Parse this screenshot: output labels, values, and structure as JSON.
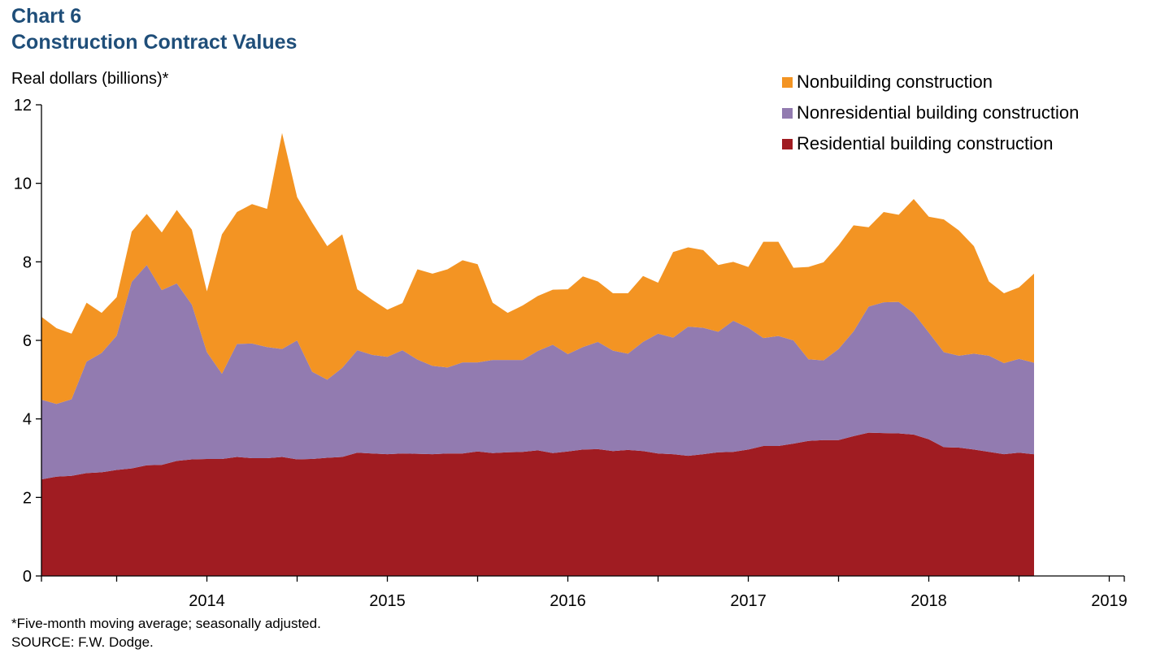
{
  "header": {
    "chart_number": "Chart 6",
    "title": "Construction Contract Values"
  },
  "footer": {
    "note": "*Five-month moving average; seasonally adjusted.",
    "source": "SOURCE: F.W. Dodge."
  },
  "chart_data": {
    "type": "area",
    "stacked": true,
    "title": "Construction Contract Values",
    "ylabel": "Real dollars (billions)*",
    "ylim": [
      0,
      12
    ],
    "yticks": [
      0,
      2,
      4,
      6,
      8,
      10,
      12
    ],
    "x_start": "2013-08",
    "x_end": "2019-08",
    "xtick_labels": [
      "2014",
      "2015",
      "2016",
      "2017",
      "2018",
      "2019"
    ],
    "grid": false,
    "legend_position": "top-right",
    "series": [
      {
        "name": "Residential building construction",
        "color": "#a01c22",
        "values": [
          2.46,
          2.53,
          2.55,
          2.62,
          2.64,
          2.7,
          2.74,
          2.82,
          2.83,
          2.93,
          2.97,
          2.98,
          2.98,
          3.03,
          3.0,
          3.0,
          3.03,
          2.97,
          2.98,
          3.01,
          3.03,
          3.14,
          3.12,
          3.1,
          3.12,
          3.11,
          3.1,
          3.12,
          3.12,
          3.17,
          3.13,
          3.15,
          3.16,
          3.2,
          3.13,
          3.17,
          3.22,
          3.23,
          3.18,
          3.21,
          3.18,
          3.12,
          3.1,
          3.06,
          3.1,
          3.15,
          3.16,
          3.22,
          3.31,
          3.31,
          3.37,
          3.44,
          3.46,
          3.46,
          3.56,
          3.65,
          3.64,
          3.63,
          3.6,
          3.48,
          3.28,
          3.27,
          3.22,
          3.16,
          3.1,
          3.14,
          3.1
        ]
      },
      {
        "name": "Nonresidential building construction",
        "color": "#927bb0",
        "values": [
          2.03,
          1.85,
          1.95,
          2.84,
          3.04,
          3.42,
          4.75,
          5.1,
          4.45,
          4.52,
          3.94,
          2.72,
          2.17,
          2.88,
          2.92,
          2.83,
          2.75,
          3.03,
          2.22,
          1.99,
          2.27,
          2.61,
          2.51,
          2.48,
          2.63,
          2.4,
          2.25,
          2.19,
          2.32,
          2.27,
          2.37,
          2.35,
          2.34,
          2.53,
          2.76,
          2.48,
          2.61,
          2.73,
          2.56,
          2.45,
          2.78,
          3.05,
          2.97,
          3.29,
          3.22,
          3.07,
          3.34,
          3.1,
          2.75,
          2.8,
          2.63,
          2.08,
          2.03,
          2.32,
          2.67,
          3.21,
          3.33,
          3.35,
          3.09,
          2.72,
          2.42,
          2.34,
          2.44,
          2.45,
          2.32,
          2.39,
          2.33
        ]
      },
      {
        "name": "Nonbuilding construction",
        "color": "#f39423",
        "values": [
          2.11,
          1.93,
          1.67,
          1.5,
          1.02,
          0.98,
          1.28,
          1.3,
          1.47,
          1.87,
          1.91,
          1.55,
          3.55,
          3.36,
          3.55,
          3.52,
          5.5,
          3.65,
          3.8,
          3.4,
          3.4,
          1.55,
          1.4,
          1.2,
          1.2,
          2.3,
          2.35,
          2.5,
          2.6,
          2.5,
          1.46,
          1.2,
          1.39,
          1.4,
          1.4,
          1.65,
          1.8,
          1.54,
          1.46,
          1.54,
          1.68,
          1.3,
          2.18,
          2.02,
          1.98,
          1.7,
          1.5,
          1.55,
          2.45,
          2.4,
          1.85,
          2.35,
          2.5,
          2.64,
          2.7,
          2.02,
          2.3,
          2.22,
          2.91,
          2.95,
          3.38,
          3.19,
          2.74,
          1.89,
          1.78,
          1.82,
          2.27
        ]
      }
    ]
  }
}
